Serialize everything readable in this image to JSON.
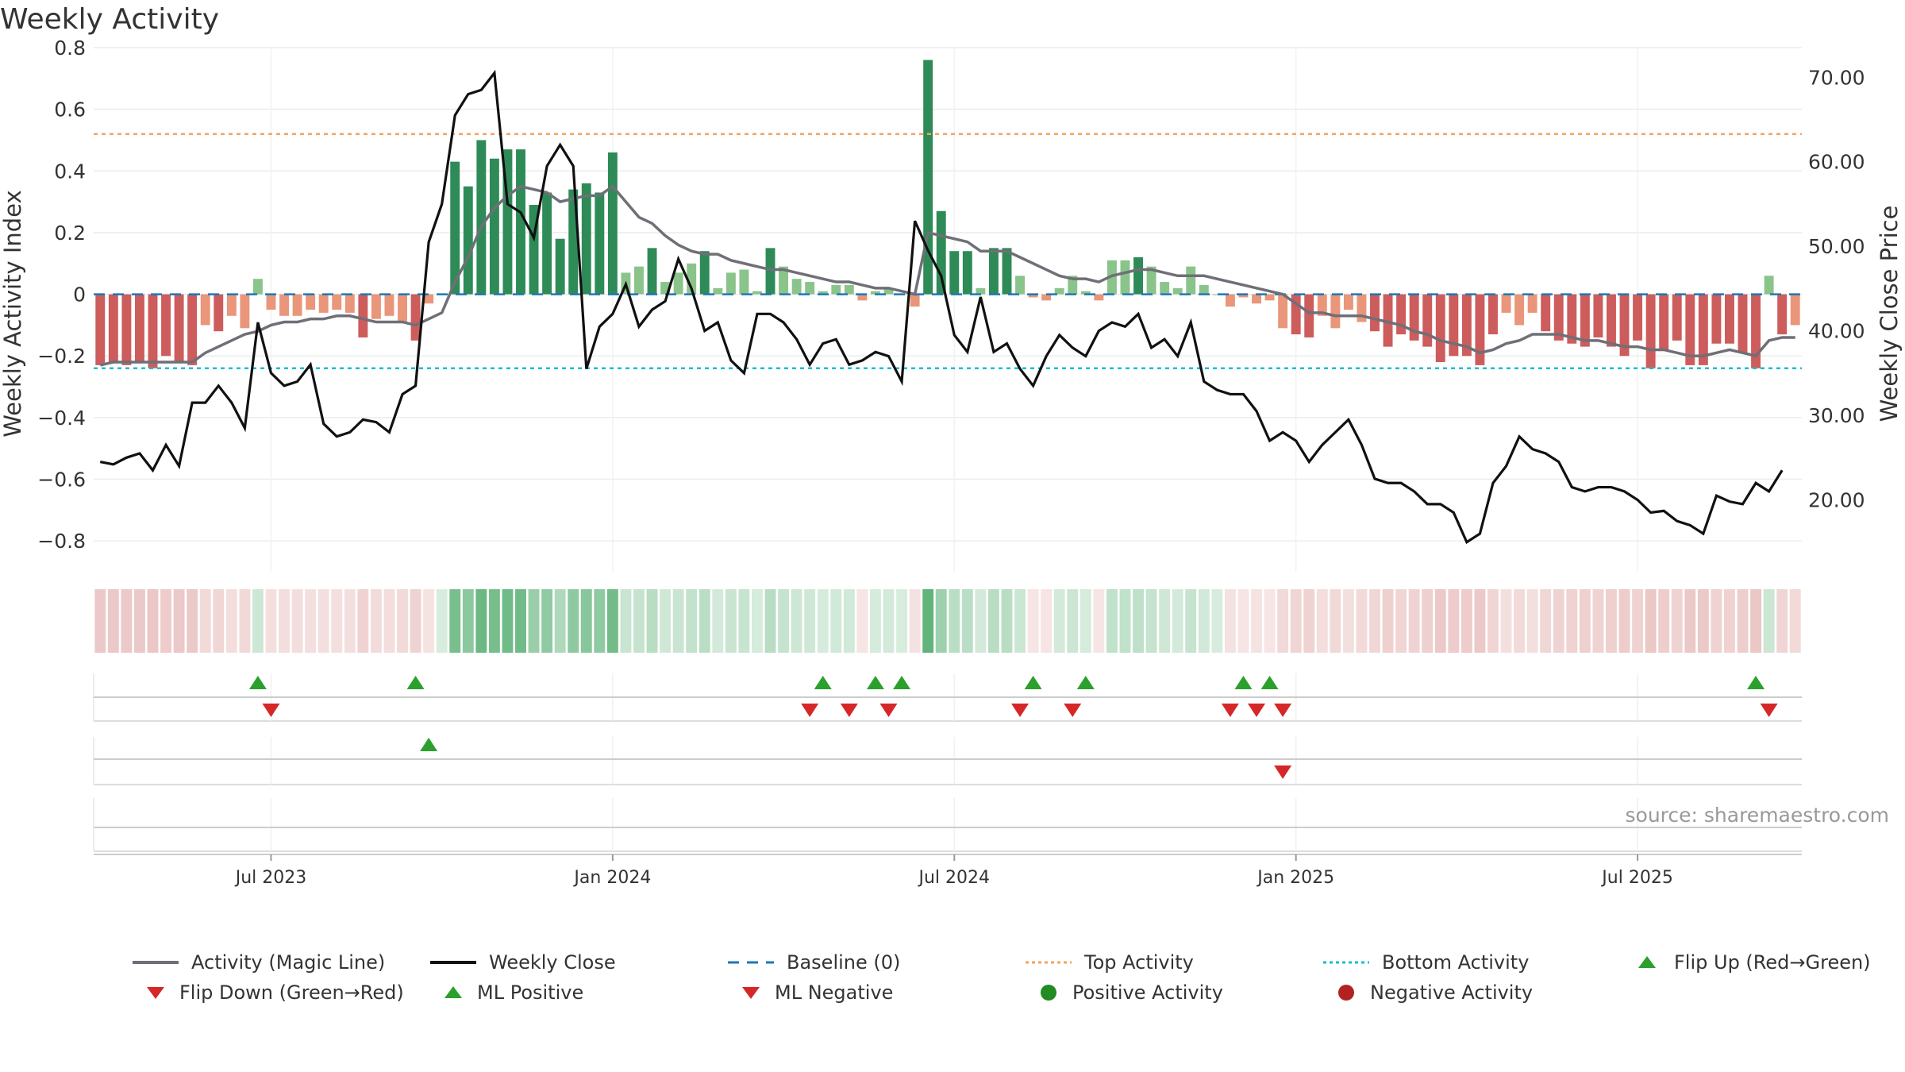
{
  "title": "Weekly Activity",
  "source": "source: sharemaestro.com",
  "chart_data": {
    "type": "bar",
    "title": "Weekly Activity",
    "ylabel": "Weekly Activity Index",
    "y2label": "Weekly Close Price",
    "ylim": [
      -0.9,
      0.8
    ],
    "y2lim": [
      11.5,
      73.5
    ],
    "yticks": [
      "0.8",
      "0.6",
      "0.4",
      "0.2",
      "0",
      "−0.2",
      "−0.4",
      "−0.6",
      "−0.8"
    ],
    "ytick_values": [
      0.8,
      0.6,
      0.4,
      0.2,
      0,
      -0.2,
      -0.4,
      -0.6,
      -0.8
    ],
    "y2ticks": [
      "70.00",
      "60.00",
      "50.00",
      "40.00",
      "30.00",
      "20.00"
    ],
    "y2tick_values": [
      70,
      60,
      50,
      40,
      30,
      20
    ],
    "xticks": [
      "Jul 2023",
      "Jan 2024",
      "Jul 2024",
      "Jan 2025",
      "Jul 2025"
    ],
    "xtick_weeks": [
      13,
      39,
      65,
      91,
      117
    ],
    "grid": true,
    "top_activity": 0.52,
    "bottom_activity": -0.24,
    "activity": [
      -0.23,
      -0.22,
      -0.23,
      -0.22,
      -0.24,
      -0.2,
      -0.22,
      -0.23,
      -0.1,
      -0.12,
      -0.07,
      -0.11,
      0.05,
      -0.05,
      -0.07,
      -0.07,
      -0.05,
      -0.06,
      -0.05,
      -0.06,
      -0.14,
      -0.08,
      -0.07,
      -0.09,
      -0.15,
      -0.03,
      0.0,
      0.43,
      0.35,
      0.5,
      0.44,
      0.47,
      0.47,
      0.29,
      0.33,
      0.18,
      0.34,
      0.36,
      0.33,
      0.46,
      0.07,
      0.09,
      0.15,
      0.04,
      0.07,
      0.1,
      0.14,
      0.02,
      0.07,
      0.08,
      0.01,
      0.15,
      0.09,
      0.05,
      0.04,
      0.01,
      0.03,
      0.03,
      -0.02,
      0.01,
      0.02,
      0.0,
      -0.04,
      0.76,
      0.27,
      0.14,
      0.14,
      0.02,
      0.15,
      0.15,
      0.06,
      -0.01,
      -0.02,
      0.02,
      0.06,
      0.01,
      -0.02,
      0.11,
      0.11,
      0.12,
      0.09,
      0.04,
      0.02,
      0.09,
      0.03,
      0.0,
      -0.04,
      -0.01,
      -0.03,
      -0.02,
      -0.11,
      -0.13,
      -0.14,
      -0.07,
      -0.11,
      -0.05,
      -0.09,
      -0.12,
      -0.17,
      -0.13,
      -0.15,
      -0.17,
      -0.22,
      -0.2,
      -0.2,
      -0.23,
      -0.13,
      -0.06,
      -0.1,
      -0.06,
      -0.12,
      -0.15,
      -0.16,
      -0.17,
      -0.14,
      -0.17,
      -0.2,
      -0.15,
      -0.24,
      -0.18,
      -0.15,
      -0.23,
      -0.23,
      -0.16,
      -0.16,
      -0.19,
      -0.24,
      0.06,
      -0.13,
      -0.1
    ],
    "magic_line": [
      -0.23,
      -0.22,
      -0.22,
      -0.22,
      -0.22,
      -0.22,
      -0.22,
      -0.22,
      -0.19,
      -0.17,
      -0.15,
      -0.13,
      -0.12,
      -0.1,
      -0.09,
      -0.09,
      -0.08,
      -0.08,
      -0.07,
      -0.07,
      -0.08,
      -0.09,
      -0.09,
      -0.09,
      -0.1,
      -0.08,
      -0.06,
      0.04,
      0.12,
      0.22,
      0.28,
      0.32,
      0.35,
      0.34,
      0.33,
      0.3,
      0.31,
      0.32,
      0.32,
      0.35,
      0.3,
      0.25,
      0.23,
      0.19,
      0.16,
      0.14,
      0.13,
      0.13,
      0.11,
      0.1,
      0.09,
      0.08,
      0.08,
      0.07,
      0.06,
      0.05,
      0.04,
      0.04,
      0.03,
      0.02,
      0.02,
      0.01,
      0.0,
      0.2,
      0.19,
      0.18,
      0.17,
      0.14,
      0.14,
      0.14,
      0.12,
      0.1,
      0.08,
      0.06,
      0.05,
      0.05,
      0.04,
      0.06,
      0.07,
      0.08,
      0.08,
      0.07,
      0.06,
      0.06,
      0.06,
      0.05,
      0.04,
      0.03,
      0.02,
      0.01,
      0.0,
      -0.03,
      -0.06,
      -0.06,
      -0.07,
      -0.07,
      -0.07,
      -0.08,
      -0.09,
      -0.1,
      -0.12,
      -0.13,
      -0.15,
      -0.16,
      -0.17,
      -0.19,
      -0.18,
      -0.16,
      -0.15,
      -0.13,
      -0.13,
      -0.13,
      -0.14,
      -0.15,
      -0.15,
      -0.16,
      -0.17,
      -0.17,
      -0.18,
      -0.18,
      -0.19,
      -0.2,
      -0.2,
      -0.19,
      -0.18,
      -0.19,
      -0.2,
      -0.15,
      -0.14,
      -0.14
    ],
    "weekly_close": [
      24.5,
      24.2,
      25.0,
      25.5,
      23.5,
      26.5,
      24.0,
      31.5,
      31.5,
      33.5,
      31.5,
      28.5,
      41.0,
      35.0,
      33.5,
      34.0,
      36.0,
      29.0,
      27.5,
      28.0,
      29.5,
      29.2,
      28.0,
      32.5,
      33.5,
      50.5,
      55.0,
      65.5,
      68.0,
      68.5,
      70.5,
      55.0,
      54.0,
      51.0,
      59.5,
      62.0,
      59.5,
      35.5,
      40.5,
      42.0,
      45.5,
      40.5,
      42.5,
      43.5,
      48.5,
      45.0,
      40.0,
      41.0,
      36.5,
      35.0,
      42.0,
      42.0,
      41.0,
      39.0,
      36.0,
      38.5,
      39.0,
      36.0,
      36.5,
      37.5,
      37.0,
      34.0,
      53.0,
      49.5,
      46.5,
      39.5,
      37.5,
      44.0,
      37.5,
      38.5,
      35.5,
      33.5,
      37.0,
      39.5,
      38.0,
      37.0,
      40.0,
      41.0,
      40.5,
      42.0,
      38.0,
      39.0,
      37.0,
      41.0,
      34.0,
      33.0,
      32.5,
      32.5,
      30.5,
      27.0,
      28.0,
      27.0,
      24.5,
      26.5,
      28.0,
      29.5,
      26.5,
      22.5,
      22.0,
      22.0,
      21.0,
      19.5,
      19.5,
      18.5,
      15.0,
      16.0,
      22.0,
      24.0,
      27.5,
      26.0,
      25.5,
      24.5,
      21.5,
      21.0,
      21.5,
      21.5,
      21.0,
      20.0,
      18.5,
      18.7,
      17.5,
      17.0,
      16.0,
      20.5,
      19.8,
      19.5,
      22.0,
      21.0,
      23.5
    ],
    "flip_up_weeks": [
      12,
      24,
      55,
      59,
      61,
      71,
      75,
      87,
      89,
      126
    ],
    "flip_down_weeks": [
      13,
      54,
      57,
      60,
      70,
      74,
      86,
      88,
      90,
      127
    ],
    "ml_positive_weeks": [
      25
    ],
    "ml_negative_weeks": [
      90
    ]
  },
  "legend": {
    "magic_line": "Activity (Magic Line)",
    "weekly_close": "Weekly Close",
    "baseline": "Baseline (0)",
    "top": "Top Activity",
    "bottom": "Bottom Activity",
    "flip_up": "Flip Up (Red→Green)",
    "flip_down": "Flip Down (Green→Red)",
    "ml_positive": "ML Positive",
    "ml_negative": "ML Negative",
    "positive": "Positive Activity",
    "negative": "Negative Activity"
  },
  "colors": {
    "green_dark": "#2e8b57",
    "green_light": "#8bc48a",
    "red_dark": "#cd5c5c",
    "red_light": "#e9967a",
    "magic_line": "#6f6f77",
    "close": "#111111",
    "baseline": "#1f77b4",
    "top": "#f4a460",
    "bottom": "#17becf",
    "marker_green": "#2ca02c",
    "marker_red": "#d62728"
  }
}
